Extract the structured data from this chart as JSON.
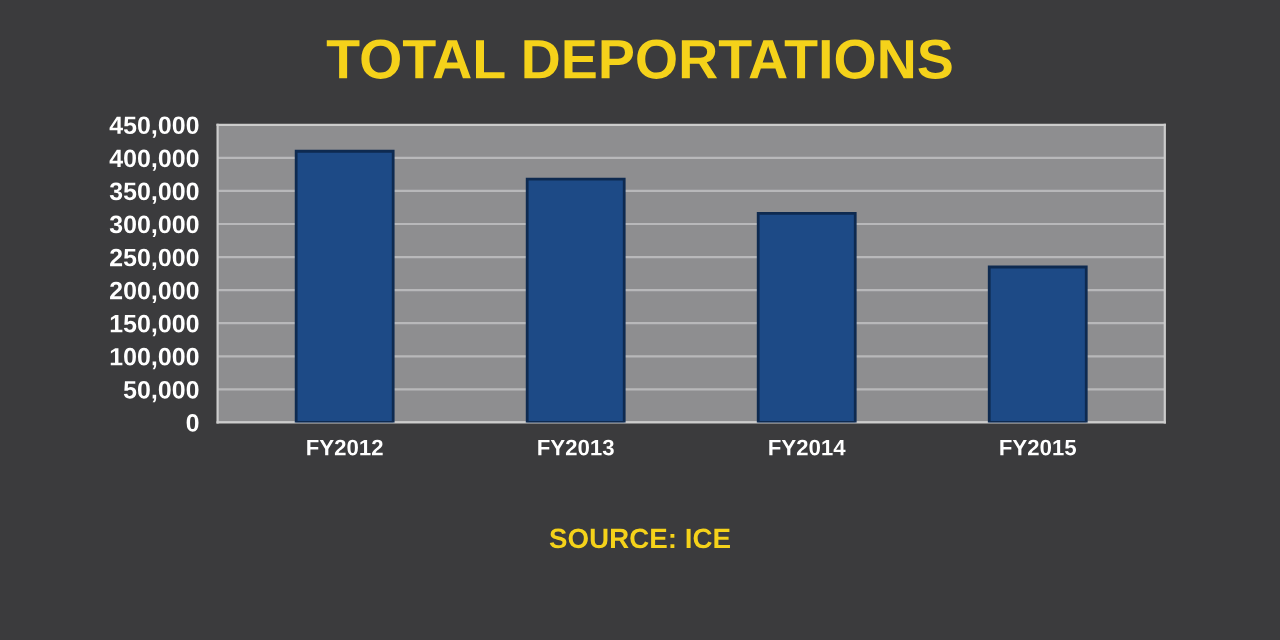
{
  "chart_data": {
    "type": "bar",
    "title": "TOTAL DEPORTATIONS",
    "categories": [
      "FY2012",
      "FY2013",
      "FY2014",
      "FY2015"
    ],
    "values": [
      410000,
      368000,
      316000,
      235000
    ],
    "color": "#1d4a86",
    "ylim": [
      0,
      450000
    ],
    "yticks": [
      {
        "value": 0,
        "label": "0"
      },
      {
        "value": 50000,
        "label": "50,000"
      },
      {
        "value": 100000,
        "label": "100,000"
      },
      {
        "value": 150000,
        "label": "150,000"
      },
      {
        "value": 200000,
        "label": "200,000"
      },
      {
        "value": 250000,
        "label": "250,000"
      },
      {
        "value": 300000,
        "label": "300,000"
      },
      {
        "value": 350000,
        "label": "350,000"
      },
      {
        "value": 400000,
        "label": "400,000"
      },
      {
        "value": 450000,
        "label": "450,000"
      }
    ],
    "grid": "y",
    "annotations": [
      "SOURCE: ICE"
    ]
  }
}
